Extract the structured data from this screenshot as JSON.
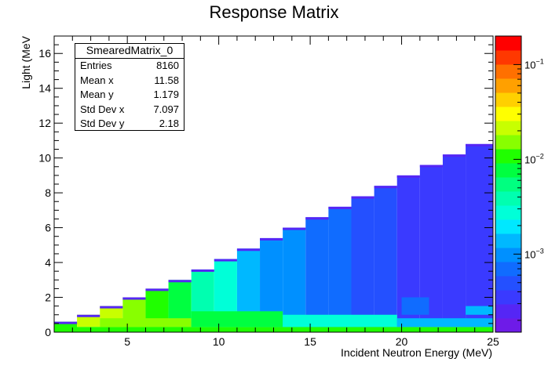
{
  "title": "Response Matrix",
  "stats": {
    "name": "SmearedMatrix_0",
    "rows": [
      {
        "label": "Entries",
        "value": "8160"
      },
      {
        "label": "Mean x",
        "value": "11.58"
      },
      {
        "label": "Mean y",
        "value": "1.179"
      },
      {
        "label": "Std Dev x",
        "value": "7.097"
      },
      {
        "label": "Std Dev y",
        "value": "2.18"
      }
    ]
  },
  "chart_data": {
    "type": "heatmap",
    "title": "Response Matrix",
    "xlabel": "Incident Neutron Energy (MeV)",
    "ylabel": "Light (MeV",
    "xlim": [
      1,
      25
    ],
    "ylim": [
      0,
      17
    ],
    "x_ticks": [
      5,
      10,
      15,
      20,
      25
    ],
    "y_ticks": [
      0,
      2,
      4,
      6,
      8,
      10,
      12,
      14,
      16
    ],
    "x_bin_width": 1.25,
    "y_bin_width": 0.2,
    "z_scale": "log",
    "colorbar_ticks": [
      {
        "value": 0.1,
        "label": "10",
        "exp": "−1"
      },
      {
        "value": 0.01,
        "label": "10",
        "exp": "−2"
      },
      {
        "value": 0.001,
        "label": "10",
        "exp": "−3"
      }
    ],
    "colorbar_range": [
      0.00015,
      0.2
    ],
    "palette": [
      "#6e1be8",
      "#5526f5",
      "#3a3aff",
      "#2450ff",
      "#106cff",
      "#0090ff",
      "#00b8ff",
      "#00e8ff",
      "#00ffd8",
      "#00ffb0",
      "#00ff80",
      "#00ff40",
      "#20ff00",
      "#88ff00",
      "#c8ff00",
      "#ffff00",
      "#ffd000",
      "#ffa000",
      "#ff7000",
      "#ff3800",
      "#ff0000"
    ],
    "regions": [
      {
        "x": [
          1.0,
          2.25
        ],
        "y": [
          0.0,
          0.6
        ],
        "value": 0.012
      },
      {
        "x": [
          2.25,
          3.5
        ],
        "y": [
          0.3,
          1.0
        ],
        "value": 0.025
      },
      {
        "x": [
          3.5,
          4.75
        ],
        "y": [
          0.3,
          1.5
        ],
        "value": 0.02
      },
      {
        "x": [
          4.75,
          6.0
        ],
        "y": [
          0.3,
          2.0
        ],
        "value": 0.013
      },
      {
        "x": [
          6.0,
          7.25
        ],
        "y": [
          0.3,
          2.5
        ],
        "value": 0.01
      },
      {
        "x": [
          7.25,
          8.5
        ],
        "y": [
          0.3,
          3.0
        ],
        "value": 0.007
      },
      {
        "x": [
          8.5,
          9.75
        ],
        "y": [
          0.3,
          3.6
        ],
        "value": 0.004
      },
      {
        "x": [
          9.75,
          11.0
        ],
        "y": [
          0.3,
          4.2
        ],
        "value": 0.0028
      },
      {
        "x": [
          11.0,
          12.25
        ],
        "y": [
          0.3,
          4.8
        ],
        "value": 0.0016
      },
      {
        "x": [
          12.25,
          13.5
        ],
        "y": [
          0.3,
          5.4
        ],
        "value": 0.0011
      },
      {
        "x": [
          13.5,
          14.75
        ],
        "y": [
          0.3,
          6.0
        ],
        "value": 0.00085
      },
      {
        "x": [
          14.75,
          16.0
        ],
        "y": [
          0.3,
          6.6
        ],
        "value": 0.0007
      },
      {
        "x": [
          16.0,
          17.25
        ],
        "y": [
          0.3,
          7.2
        ],
        "value": 0.0006
      },
      {
        "x": [
          17.25,
          18.5
        ],
        "y": [
          0.3,
          7.8
        ],
        "value": 0.0005
      },
      {
        "x": [
          18.5,
          19.75
        ],
        "y": [
          0.3,
          8.4
        ],
        "value": 0.00045
      },
      {
        "x": [
          19.75,
          21.0
        ],
        "y": [
          0.3,
          9.0
        ],
        "value": 0.0004
      },
      {
        "x": [
          21.0,
          22.25
        ],
        "y": [
          0.3,
          9.6
        ],
        "value": 0.00037
      },
      {
        "x": [
          22.25,
          23.5
        ],
        "y": [
          0.3,
          10.2
        ],
        "value": 0.00035
      },
      {
        "x": [
          23.5,
          25.0
        ],
        "y": [
          0.3,
          10.8
        ],
        "value": 0.00033
      },
      {
        "x": [
          1.0,
          25.0
        ],
        "y": [
          0.0,
          0.3
        ],
        "value": 0.012
      },
      {
        "x": [
          3.5,
          8.5
        ],
        "y": [
          0.3,
          0.8
        ],
        "value": 0.018
      },
      {
        "x": [
          8.5,
          13.5
        ],
        "y": [
          0.3,
          1.2
        ],
        "value": 0.008
      },
      {
        "x": [
          13.5,
          19.75
        ],
        "y": [
          0.3,
          1.0
        ],
        "value": 0.0025
      },
      {
        "x": [
          19.75,
          25.0
        ],
        "y": [
          0.3,
          0.8
        ],
        "value": 0.0015
      },
      {
        "x": [
          20.0,
          21.5
        ],
        "y": [
          1.0,
          2.0
        ],
        "value": 0.0007
      },
      {
        "x": [
          23.5,
          25.0
        ],
        "y": [
          1.0,
          1.5
        ],
        "value": 0.0012
      }
    ]
  }
}
